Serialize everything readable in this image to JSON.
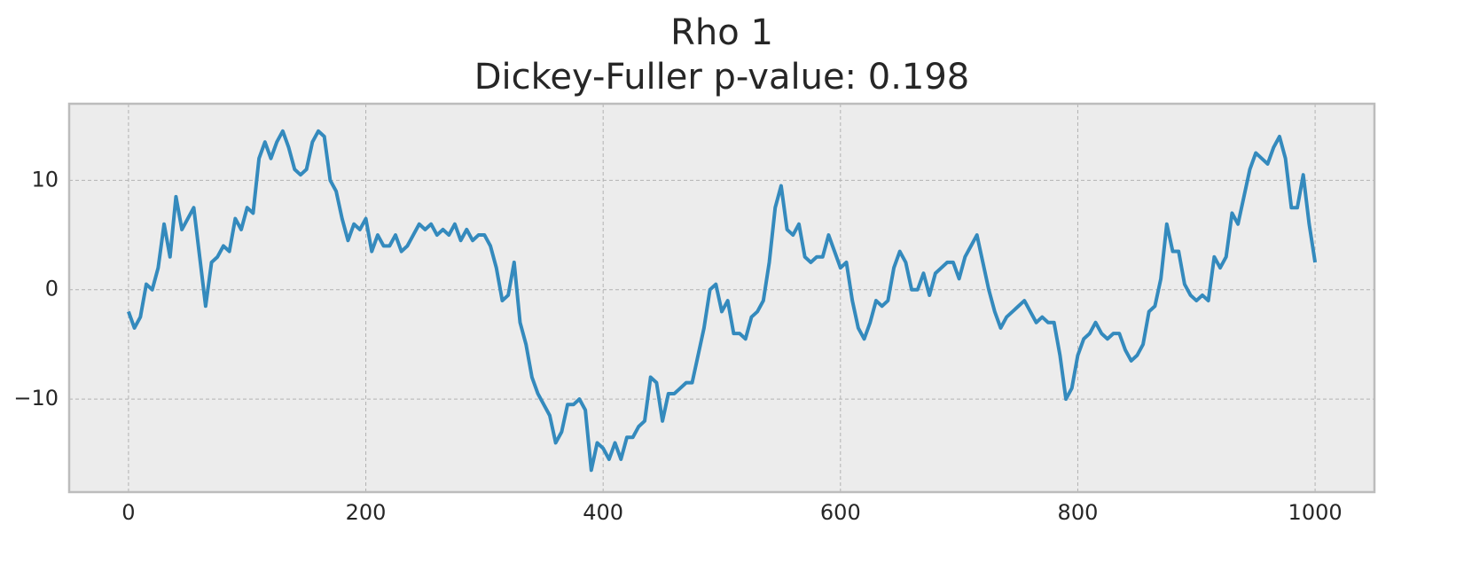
{
  "chart_data": {
    "type": "line",
    "title": "Rho 1",
    "subtitle": "Dickey-Fuller p-value: 0.198",
    "x": [
      0,
      5,
      10,
      15,
      20,
      25,
      30,
      35,
      40,
      45,
      50,
      55,
      60,
      65,
      70,
      75,
      80,
      85,
      90,
      95,
      100,
      105,
      110,
      115,
      120,
      125,
      130,
      135,
      140,
      145,
      150,
      155,
      160,
      165,
      170,
      175,
      180,
      185,
      190,
      195,
      200,
      205,
      210,
      215,
      220,
      225,
      230,
      235,
      240,
      245,
      250,
      255,
      260,
      265,
      270,
      275,
      280,
      285,
      290,
      295,
      300,
      305,
      310,
      315,
      320,
      325,
      330,
      335,
      340,
      345,
      350,
      355,
      360,
      365,
      370,
      375,
      380,
      385,
      390,
      395,
      400,
      405,
      410,
      415,
      420,
      425,
      430,
      435,
      440,
      445,
      450,
      455,
      460,
      465,
      470,
      475,
      480,
      485,
      490,
      495,
      500,
      505,
      510,
      515,
      520,
      525,
      530,
      535,
      540,
      545,
      550,
      555,
      560,
      565,
      570,
      575,
      580,
      585,
      590,
      595,
      600,
      605,
      610,
      615,
      620,
      625,
      630,
      635,
      640,
      645,
      650,
      655,
      660,
      665,
      670,
      675,
      680,
      685,
      690,
      695,
      700,
      705,
      710,
      715,
      720,
      725,
      730,
      735,
      740,
      745,
      750,
      755,
      760,
      765,
      770,
      775,
      780,
      785,
      790,
      795,
      800,
      805,
      810,
      815,
      820,
      825,
      830,
      835,
      840,
      845,
      850,
      855,
      860,
      865,
      870,
      875,
      880,
      885,
      890,
      895,
      900,
      905,
      910,
      915,
      920,
      925,
      930,
      935,
      940,
      945,
      950,
      955,
      960,
      965,
      970,
      975,
      980,
      985,
      990,
      995,
      1000
    ],
    "series": [
      {
        "name": "Rho 1",
        "color": "#348abd",
        "values": [
          -2,
          -3.5,
          -2.5,
          0.5,
          0,
          2,
          6,
          3,
          8.5,
          5.5,
          6.5,
          7.5,
          3,
          -1.5,
          2.5,
          3,
          4,
          3.5,
          6.5,
          5.5,
          7.5,
          7,
          12,
          13.5,
          12,
          13.5,
          14.5,
          13,
          11,
          10.5,
          11,
          13.5,
          14.5,
          14,
          10,
          9,
          6.5,
          4.5,
          6,
          5.5,
          6.5,
          3.5,
          5,
          4,
          4,
          5,
          3.5,
          4,
          5,
          6,
          5.5,
          6,
          5,
          5.5,
          5,
          6,
          4.5,
          5.5,
          4.5,
          5,
          5,
          4,
          2,
          -1,
          -0.5,
          2.5,
          -3,
          -5,
          -8,
          -9.5,
          -10.5,
          -11.5,
          -14,
          -13,
          -10.5,
          -10.5,
          -10,
          -11,
          -16.5,
          -14,
          -14.5,
          -15.5,
          -14,
          -15.5,
          -13.5,
          -13.5,
          -12.5,
          -12,
          -8,
          -8.5,
          -12,
          -9.5,
          -9.5,
          -9,
          -8.5,
          -8.5,
          -6,
          -3.5,
          0,
          0.5,
          -2,
          -1,
          -4,
          -4,
          -4.5,
          -2.5,
          -2,
          -1,
          2.5,
          7.5,
          9.5,
          5.5,
          5,
          6,
          3,
          2.5,
          3,
          3,
          5,
          3.5,
          2,
          2.5,
          -1,
          -3.5,
          -4.5,
          -3,
          -1,
          -1.5,
          -1,
          2,
          3.5,
          2.5,
          0,
          0,
          1.5,
          -0.5,
          1.5,
          2,
          2.5,
          2.5,
          1,
          3,
          4,
          5,
          2.5,
          0,
          -2,
          -3.5,
          -2.5,
          -2,
          -1.5,
          -1,
          -2,
          -3,
          -2.5,
          -3,
          -3,
          -6,
          -10,
          -9,
          -6,
          -4.5,
          -4,
          -3,
          -4,
          -4.5,
          -4,
          -4,
          -5.5,
          -6.5,
          -6,
          -5,
          -2,
          -1.5,
          1,
          6,
          3.5,
          3.5,
          0.5,
          -0.5,
          -1,
          -0.5,
          -1,
          3,
          2,
          3,
          7,
          6,
          8.5,
          11,
          12.5,
          12,
          11.5,
          13,
          14,
          12,
          7.5,
          7.5,
          10.5,
          6,
          2.5
        ]
      }
    ],
    "xlim": [
      -50,
      1050
    ],
    "ylim": [
      -18.5,
      17
    ],
    "xticks": [
      0,
      200,
      400,
      600,
      800,
      1000
    ],
    "yticks": [
      {
        "value": -10,
        "label": "−10"
      },
      0,
      10
    ],
    "grid": true
  }
}
